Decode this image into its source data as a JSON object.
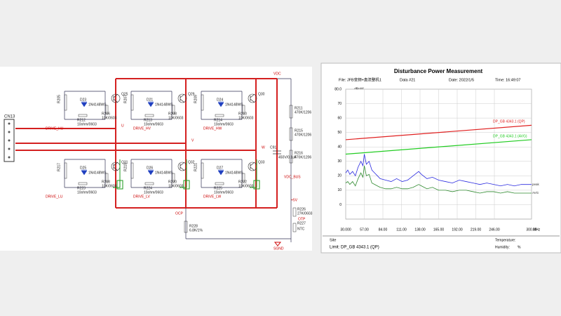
{
  "schematic": {
    "connector": "CN13",
    "cells": [
      {
        "transistor": "Q25",
        "diode": "D23",
        "diode_part": "1N4148WS",
        "resistor": "R206",
        "resistor_value": "10K/0603",
        "gate_resistor": "R212",
        "gate_value": "10ohm/0603",
        "pull": "R205",
        "drive": "DRIVE_HU"
      },
      {
        "transistor": "Q29",
        "diode": "D21",
        "diode_part": "1N4148WS",
        "resistor": "R208",
        "resistor_value": "10K/0603",
        "gate_resistor": "R213",
        "gate_value": "10ohm/0603",
        "pull": "R207",
        "drive": "DRIVE_HV"
      },
      {
        "transistor": "Q30",
        "diode": "D24",
        "diode_part": "1N4148WS",
        "resistor": "R210",
        "resistor_value": "10K/0603",
        "gate_resistor": "R214",
        "gate_value": "10ohm/0603",
        "pull": "R209",
        "drive": "DRIVE_HW"
      },
      {
        "transistor": "Q31",
        "diode": "D25",
        "diode_part": "1N4148WS",
        "resistor": "R218",
        "resistor_value": "10K/0603",
        "gate_resistor": "R223",
        "gate_value": "10ohm/0603",
        "pull": "R217",
        "drive": "DRIVE_LU"
      },
      {
        "transistor": "Q32",
        "diode": "D26",
        "diode_part": "1N4148WS",
        "resistor": "R220",
        "resistor_value": "10K/0603",
        "gate_resistor": "R224",
        "gate_value": "10ohm/0603",
        "pull": "R219",
        "drive": "DRIVE_LV"
      },
      {
        "transistor": "Q33",
        "diode": "D27",
        "diode_part": "1N4148WS",
        "resistor": "R222",
        "resistor_value": "10K/0603",
        "gate_resistor": "R225",
        "gate_value": "10ohm/0603",
        "pull": "R221",
        "drive": "DRIVE_LW"
      }
    ],
    "phases": [
      "U",
      "V",
      "W"
    ],
    "vdc": "VDC",
    "vdc_bus": "VDC_BUS",
    "capacitor": "C91",
    "capacitor_value": "450V/0.1uF",
    "divider": [
      {
        "name": "R211",
        "value": "470K/1206"
      },
      {
        "name": "R215",
        "value": "470K/1206"
      },
      {
        "name": "R216",
        "value": "470K/1206"
      }
    ],
    "ocp": "OCP",
    "shunt": "R228",
    "shunt_value": "6.8K/1%",
    "supply": "+5V",
    "otp": "OTP",
    "ntc": "R226",
    "ntc_value": "27K/0603",
    "ntc_part": "R227",
    "ntc_type": "NTC",
    "ground": "SGND"
  },
  "chart_data": {
    "type": "line",
    "title": "Disturbance Power Measurement",
    "file": "File: JFB变频+直流整机1",
    "data_no": "Data #21",
    "date": "Date: 2022/1/5",
    "time": "Time: 16:49:07",
    "y_unit": "dBpW",
    "x_unit": "MHz",
    "xlim": [
      30,
      300
    ],
    "ylim": [
      -10,
      80
    ],
    "xticks": [
      {
        "value": 30,
        "label": "30.000"
      },
      {
        "value": 57,
        "label": "57.00"
      },
      {
        "value": 84,
        "label": "84.00"
      },
      {
        "value": 111,
        "label": "111.00"
      },
      {
        "value": 138,
        "label": "138.00"
      },
      {
        "value": 165,
        "label": "165.00"
      },
      {
        "value": 192,
        "label": "192.00"
      },
      {
        "value": 219,
        "label": "219.00"
      },
      {
        "value": 246,
        "label": "246.00"
      },
      {
        "value": 300,
        "label": "300.00"
      }
    ],
    "yticks": [
      0,
      10,
      20,
      30,
      40,
      50,
      60,
      70,
      {
        "value": 80,
        "label": "80.0"
      }
    ],
    "grid": true,
    "limits": [
      {
        "name": "DP_GB 4343.1 (QP)",
        "color": "#e02020",
        "x": [
          30,
          300
        ],
        "values": [
          45,
          55
        ]
      },
      {
        "name": "DP_GB 4343.1 (AVG)",
        "color": "#22cc22",
        "x": [
          30,
          300
        ],
        "values": [
          35,
          45
        ]
      }
    ],
    "x": [
      30,
      33,
      36,
      40,
      44,
      48,
      52,
      55,
      57,
      60,
      64,
      68,
      72,
      76,
      80,
      88,
      96,
      104,
      112,
      120,
      128,
      136,
      140,
      148,
      156,
      165,
      175,
      185,
      195,
      205,
      215,
      225,
      235,
      245,
      255,
      265,
      275,
      285,
      300
    ],
    "series": [
      {
        "name": "peak",
        "color": "#2a2ae0",
        "values": [
          22,
          24,
          21,
          23,
          20,
          26,
          30,
          27,
          35,
          28,
          30,
          24,
          22,
          20,
          18,
          17,
          16,
          18,
          16,
          17,
          20,
          23,
          21,
          18,
          19,
          17,
          16,
          15,
          17,
          16,
          15,
          14,
          15,
          14,
          13,
          14,
          13,
          14,
          14
        ]
      },
      {
        "name": "AVG",
        "color": "#2f8a2f",
        "values": [
          15,
          16,
          14,
          16,
          13,
          18,
          22,
          19,
          27,
          20,
          21,
          15,
          14,
          13,
          12,
          11,
          11,
          12,
          11,
          11,
          12,
          14,
          13,
          11,
          12,
          10,
          10,
          9,
          10,
          10,
          9,
          8,
          9,
          9,
          8,
          9,
          8,
          8,
          8
        ]
      }
    ],
    "site": "Site",
    "temperature": "Temperature:",
    "limit": "Limit: DP_GB 4343.1 (QP)",
    "humidity": "Humidity:",
    "humidity_unit": "%"
  }
}
